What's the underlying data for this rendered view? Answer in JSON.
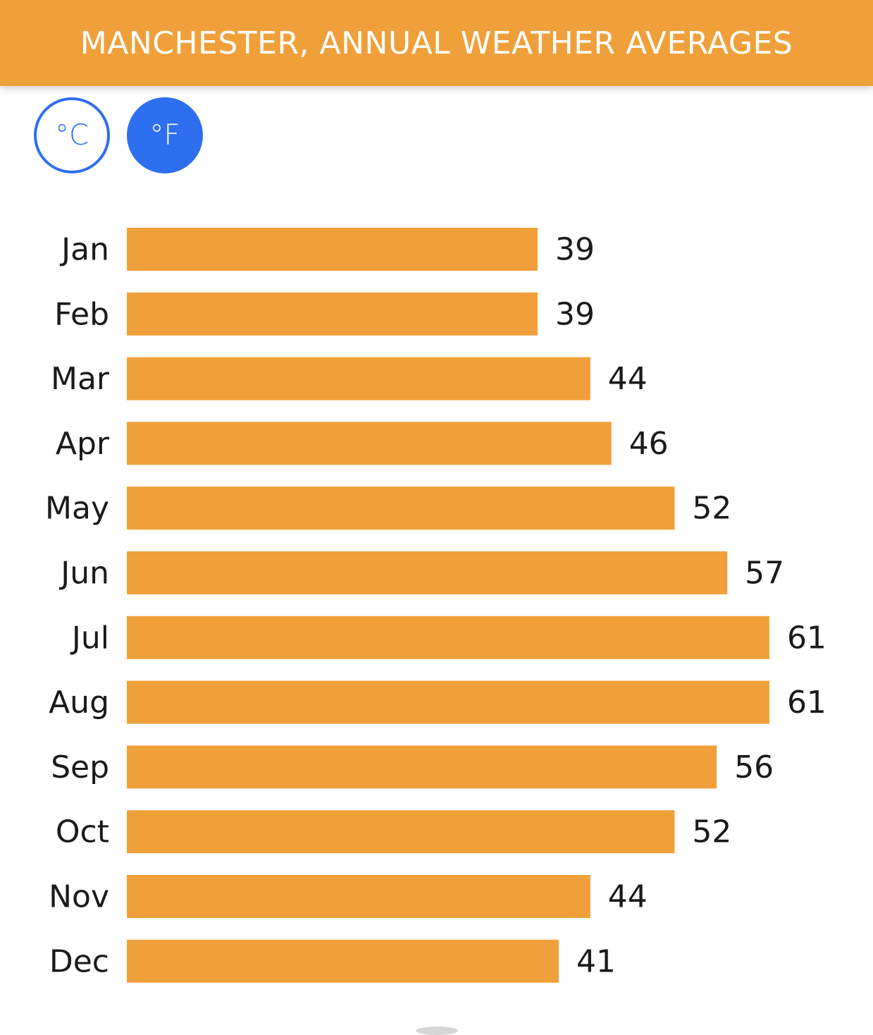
{
  "header": {
    "title": "MANCHESTER, ANNUAL WEATHER AVERAGES"
  },
  "units": {
    "celsius_label": "°C",
    "fahrenheit_label": "°F",
    "selected": "°F",
    "accent_color": "#2e6ff0"
  },
  "chart_data": {
    "type": "bar",
    "orientation": "horizontal",
    "categories": [
      "Jan",
      "Feb",
      "Mar",
      "Apr",
      "May",
      "Jun",
      "Jul",
      "Aug",
      "Sep",
      "Oct",
      "Nov",
      "Dec"
    ],
    "values": [
      39,
      39,
      44,
      46,
      52,
      57,
      61,
      61,
      56,
      52,
      44,
      41
    ],
    "bar_color": "#f0a03a",
    "data_labels": true,
    "grid": false,
    "title": "",
    "xlabel": "",
    "ylabel": ""
  }
}
